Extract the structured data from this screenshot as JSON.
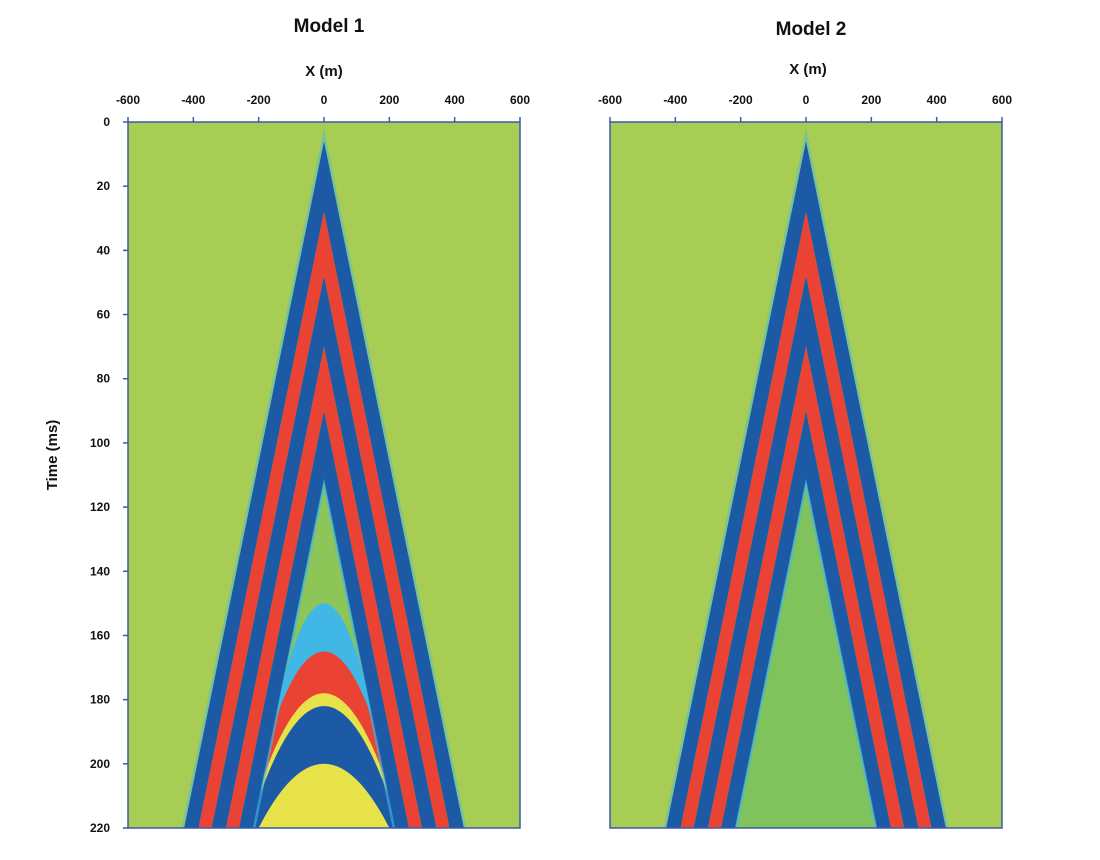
{
  "chart_data": [
    {
      "type": "heatmap",
      "title": "Model 1",
      "xlabel": "X (m)",
      "ylabel": "Time (ms)",
      "xlim": [
        -600,
        600
      ],
      "ylim": [
        0,
        220
      ],
      "y_inverted": true,
      "x_ticks": [
        "-600",
        "-400",
        "-200",
        "0",
        "200",
        "400",
        "600"
      ],
      "y_ticks": [
        "0",
        "20",
        "40",
        "60",
        "80",
        "100",
        "120",
        "140",
        "160",
        "180",
        "200",
        "220"
      ],
      "background_color": "#a8cd55",
      "wavefront": {
        "apex_time_ms": 6,
        "slope_ms_per_m": 0.5,
        "direct_bands": [
          {
            "color": "blue",
            "delay_start_ms": 0,
            "delay_end_ms": 22
          },
          {
            "color": "red",
            "delay_start_ms": 22,
            "delay_end_ms": 42
          },
          {
            "color": "blue",
            "delay_start_ms": 42,
            "delay_end_ms": 64
          },
          {
            "color": "red",
            "delay_start_ms": 64,
            "delay_end_ms": 84
          },
          {
            "color": "blue",
            "delay_start_ms": 84,
            "delay_end_ms": 106
          }
        ],
        "curved_events": [
          {
            "color": "cyan",
            "apex_time_ms": 150,
            "half_width_m": 210
          },
          {
            "color": "red",
            "apex_time_ms": 165,
            "half_width_m": 240
          },
          {
            "color": "yellow",
            "apex_time_ms": 178,
            "half_width_m": 235
          },
          {
            "color": "blue",
            "apex_time_ms": 182,
            "half_width_m": 230
          },
          {
            "color": "yellow",
            "apex_time_ms": 200,
            "half_width_m": 200
          }
        ]
      }
    },
    {
      "type": "heatmap",
      "title": "Model 2",
      "xlabel": "X (m)",
      "ylabel": "",
      "xlim": [
        -600,
        600
      ],
      "ylim": [
        0,
        220
      ],
      "y_inverted": true,
      "x_ticks": [
        "-600",
        "-400",
        "-200",
        "0",
        "200",
        "400",
        "600"
      ],
      "y_ticks": [],
      "background_color": "#a8cd55",
      "wavefront": {
        "apex_time_ms": 6,
        "slope_ms_per_m": 0.5,
        "direct_bands": [
          {
            "color": "blue",
            "delay_start_ms": 0,
            "delay_end_ms": 22
          },
          {
            "color": "red",
            "delay_start_ms": 22,
            "delay_end_ms": 42
          },
          {
            "color": "blue",
            "delay_start_ms": 42,
            "delay_end_ms": 64
          },
          {
            "color": "red",
            "delay_start_ms": 64,
            "delay_end_ms": 84
          },
          {
            "color": "blue",
            "delay_start_ms": 84,
            "delay_end_ms": 106
          }
        ],
        "curved_events": []
      }
    }
  ],
  "colors": {
    "background": "#a8cd55",
    "blue": "#1d5aa6",
    "red": "#ea4333",
    "cyan": "#41b7e6",
    "yellow": "#e8e24a",
    "inner_green": "#76bf5d",
    "axis": "#3a5aa8"
  }
}
